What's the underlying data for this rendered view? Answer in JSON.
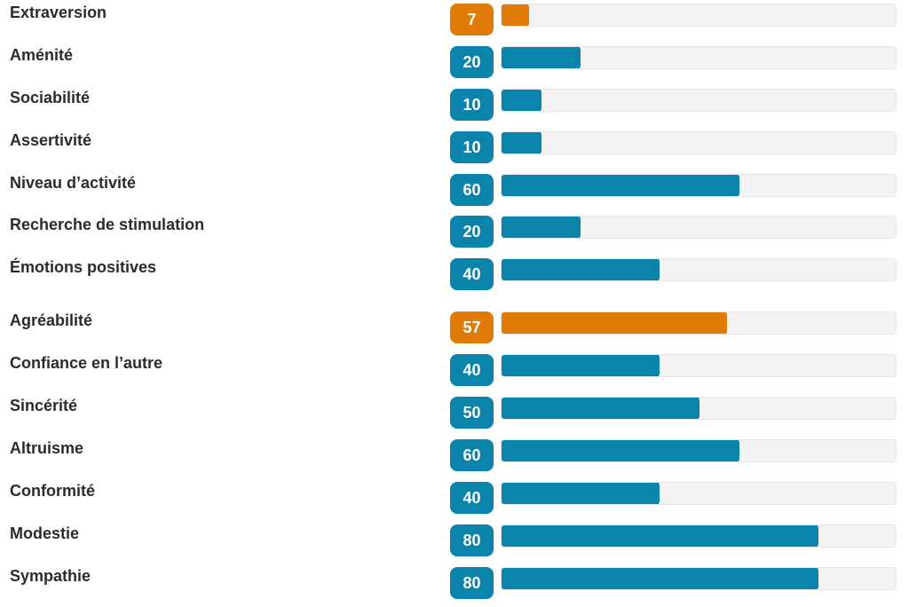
{
  "colors": {
    "primary": "#e07c05",
    "secondary": "#0a84ab",
    "track": "#f3f3f3"
  },
  "traits": [
    {
      "label": "Extraversion",
      "value": "7",
      "percent": 7,
      "kind": "primary"
    },
    {
      "label": "Aménité",
      "value": "20",
      "percent": 20,
      "kind": "secondary"
    },
    {
      "label": "Sociabilité",
      "value": "10",
      "percent": 10,
      "kind": "secondary"
    },
    {
      "label": "Assertivité",
      "value": "10",
      "percent": 10,
      "kind": "secondary"
    },
    {
      "label": "Niveau d’activité",
      "value": "60",
      "percent": 60,
      "kind": "secondary"
    },
    {
      "label": "Recherche de stimulation",
      "value": "20",
      "percent": 20,
      "kind": "secondary"
    },
    {
      "label": "Émotions positives",
      "value": "40",
      "percent": 40,
      "kind": "secondary"
    },
    {
      "label": "Agréabilité",
      "value": "57",
      "percent": 57,
      "kind": "primary"
    },
    {
      "label": "Confiance en l’autre",
      "value": "40",
      "percent": 40,
      "kind": "secondary"
    },
    {
      "label": "Sincérité",
      "value": "50",
      "percent": 50,
      "kind": "secondary"
    },
    {
      "label": "Altruisme",
      "value": "60",
      "percent": 60,
      "kind": "secondary"
    },
    {
      "label": "Conformité",
      "value": "40",
      "percent": 40,
      "kind": "secondary"
    },
    {
      "label": "Modestie",
      "value": "80",
      "percent": 80,
      "kind": "secondary"
    },
    {
      "label": "Sympathie",
      "value": "80",
      "percent": 80,
      "kind": "secondary"
    }
  ]
}
